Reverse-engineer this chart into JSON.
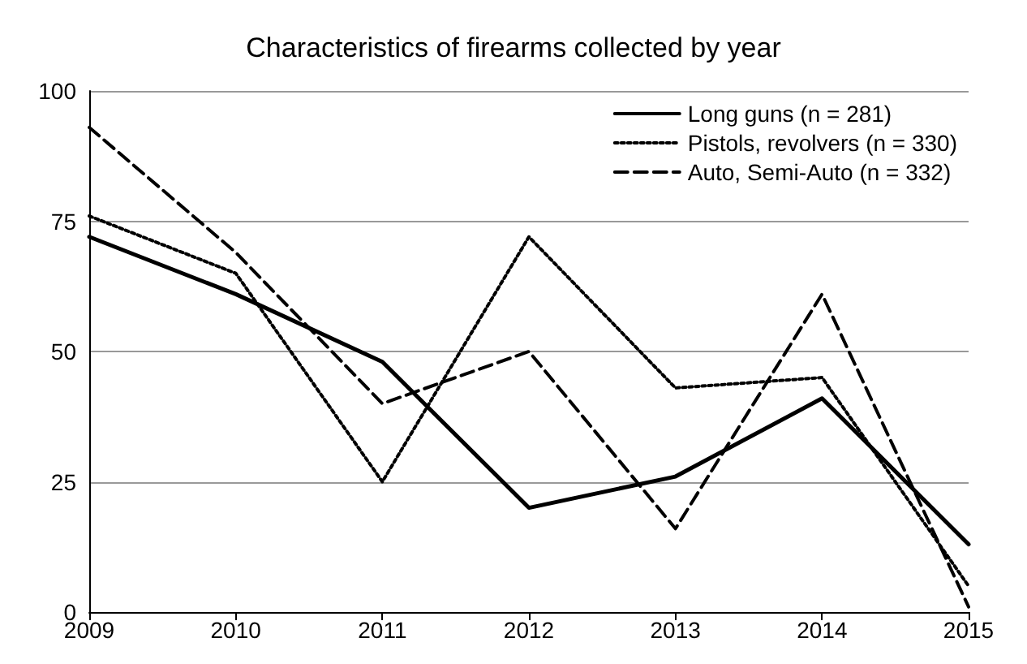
{
  "chart_data": {
    "type": "line",
    "title": "Characteristics of firearms collected by year",
    "x": [
      2009,
      2010,
      2011,
      2012,
      2013,
      2014,
      2015
    ],
    "xlim": [
      2009,
      2015
    ],
    "xticks": [
      2009,
      2010,
      2011,
      2012,
      2013,
      2014,
      2015
    ],
    "ylim": [
      0,
      100
    ],
    "yticks": [
      0,
      25,
      50,
      75,
      100
    ],
    "grid": "y",
    "legend": "top right",
    "marker": "none",
    "series": [
      {
        "name": "Long guns (n = 281)",
        "color": "#000000",
        "line_style": "solid",
        "values": [
          72,
          61,
          48,
          20,
          26,
          41,
          13
        ]
      },
      {
        "name": "Pistols, revolvers (n = 330)",
        "color": "#000000",
        "line_style": "dotted",
        "values": [
          76,
          65,
          25,
          72,
          43,
          45,
          5
        ]
      },
      {
        "name": "Auto, Semi-Auto (n = 332)",
        "color": "#000000",
        "line_style": "dashed",
        "values": [
          93,
          69,
          40,
          50,
          16,
          61,
          1
        ]
      }
    ]
  }
}
